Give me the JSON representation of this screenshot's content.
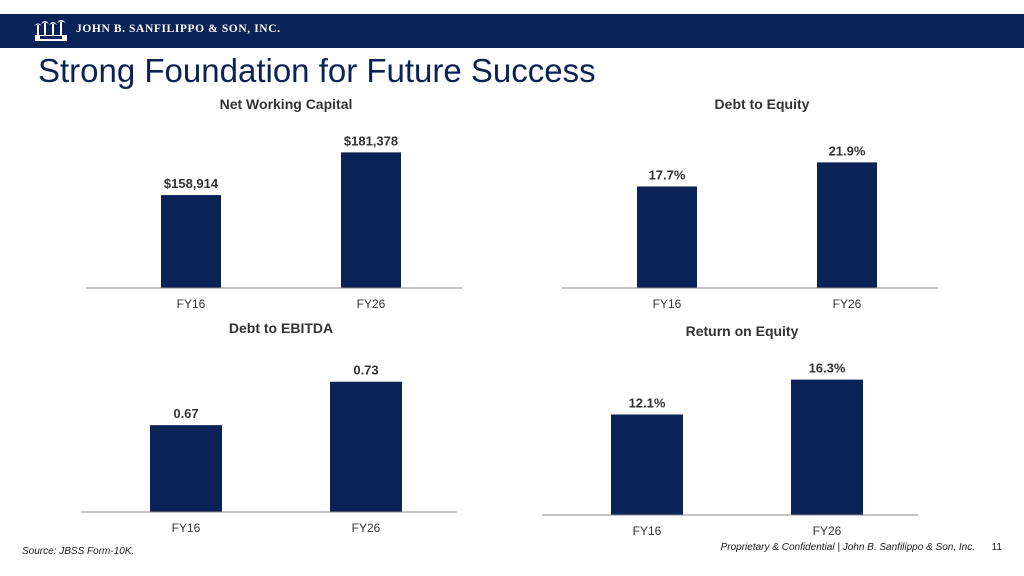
{
  "header": {
    "company": "JOHN B. SANFILIPPO & SON, INC.",
    "logo_icon": "palm-trees-logo-icon"
  },
  "slide": {
    "title": "Strong Foundation for Future Success"
  },
  "colors": {
    "bar": "#0b2257",
    "header_bg": "#0b2257",
    "axis": "#8a8a8a",
    "label": "#333333"
  },
  "chart_data": [
    {
      "type": "bar",
      "title": "Net Working Capital",
      "categories": [
        "FY16",
        "FY26"
      ],
      "values": [
        158914,
        181378
      ],
      "data_labels": [
        "$158,914",
        "$181,378"
      ],
      "ylim": [
        110000,
        190000
      ]
    },
    {
      "type": "bar",
      "title": "Debt to Equity",
      "categories": [
        "FY16",
        "FY26"
      ],
      "values": [
        17.7,
        21.9
      ],
      "data_labels": [
        "17.7%",
        "21.9%"
      ],
      "ylim": [
        0,
        26.5
      ]
    },
    {
      "type": "bar",
      "title": "Debt to EBITDA",
      "categories": [
        "FY16",
        "FY26"
      ],
      "values": [
        0.67,
        0.73
      ],
      "data_labels": [
        "0.67",
        "0.73"
      ],
      "ylim": [
        0.55,
        0.76
      ]
    },
    {
      "type": "bar",
      "title": "Return on Equity",
      "categories": [
        "FY16",
        "FY26"
      ],
      "values": [
        12.1,
        16.3
      ],
      "data_labels": [
        "12.1%",
        "16.3%"
      ],
      "ylim": [
        0,
        18.3
      ]
    }
  ],
  "footer": {
    "source": "Source: JBSS Form-10K.",
    "confidential": "Proprietary & Confidential | John B. Sanfilippo & Son, Inc.",
    "page": "11"
  }
}
